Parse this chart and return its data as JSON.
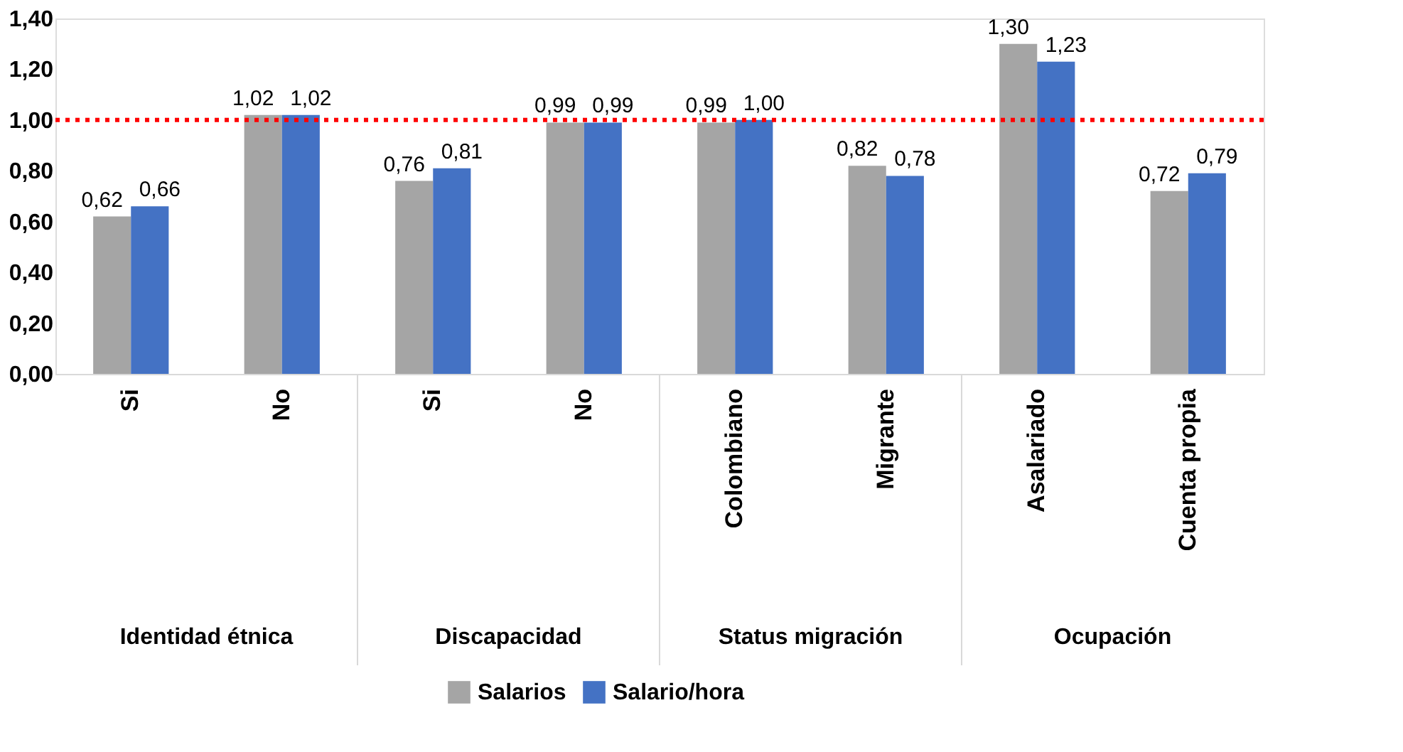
{
  "chart_data": {
    "type": "bar",
    "categories": [
      "Si",
      "No",
      "Si",
      "No",
      "Colombiano",
      "Migrante",
      "Asalariado",
      "Cuenta propia"
    ],
    "series": [
      {
        "name": "Salarios",
        "color": "#a5a5a5",
        "values": [
          0.62,
          1.02,
          0.76,
          0.99,
          0.99,
          0.82,
          1.3,
          0.72
        ],
        "value_labels": [
          "0,62",
          "1,02",
          "0,76",
          "0,99",
          "0,99",
          "0,82",
          "1,30",
          "0,72"
        ]
      },
      {
        "name": "Salario/hora",
        "color": "#4472c4",
        "values": [
          0.66,
          1.02,
          0.81,
          0.99,
          1.0,
          0.78,
          1.23,
          0.79
        ],
        "value_labels": [
          "0,66",
          "1,02",
          "0,81",
          "0,99",
          "1,00",
          "0,78",
          "1,23",
          "0,79"
        ]
      }
    ],
    "annotations": [
      "Identidad étnica",
      "Discapacidad",
      "Status migración",
      "Ocupación"
    ],
    "ylim": [
      0,
      1.4
    ],
    "yticks": [
      {
        "value": 0,
        "label": "0,00"
      },
      {
        "value": 0.2,
        "label": "0,20"
      },
      {
        "value": 0.4,
        "label": "0,40"
      },
      {
        "value": 0.6,
        "label": "0,60"
      },
      {
        "value": 0.8,
        "label": "0,80"
      },
      {
        "value": 1.0,
        "label": "1,00"
      },
      {
        "value": 1.2,
        "label": "1,20"
      },
      {
        "value": 1.4,
        "label": "1,40"
      }
    ],
    "ref_lines": [
      {
        "axis": "y",
        "value": 1.0,
        "color": "#ff0000",
        "line_style": "dotted"
      }
    ],
    "grid": false,
    "legend": "bottom"
  }
}
